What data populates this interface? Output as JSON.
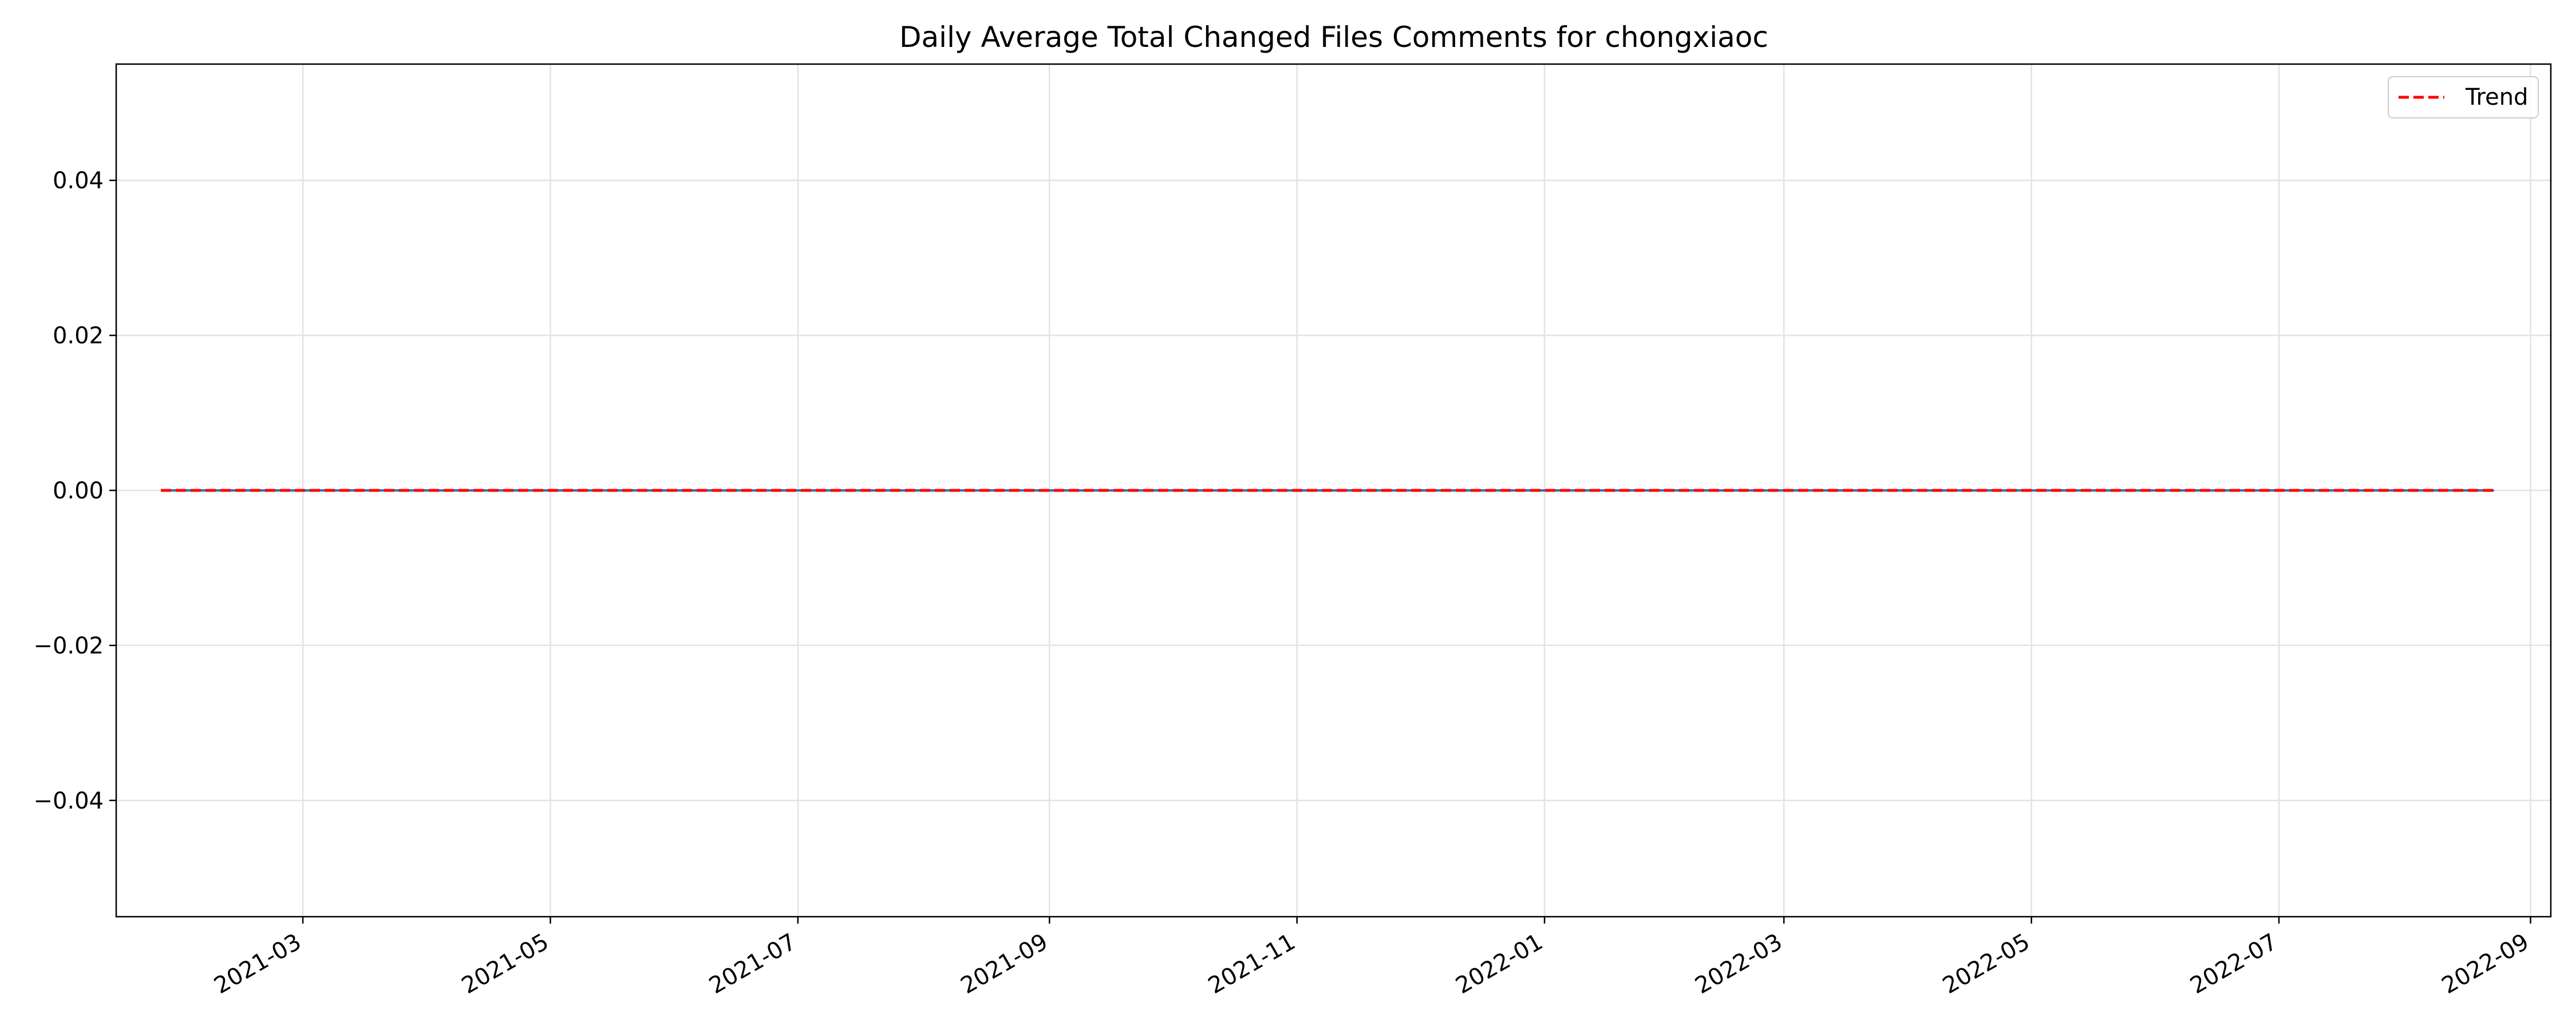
{
  "chart_data": {
    "type": "line",
    "title": "Daily Average Total Changed Files Comments for chongxiaoc",
    "xlabel": "",
    "ylabel": "",
    "x_axis_type": "date",
    "xlim": [
      "2021-01-14",
      "2022-09-06"
    ],
    "ylim": [
      -0.055,
      0.055
    ],
    "x_ticks": [
      "2021-03-01",
      "2021-05-01",
      "2021-07-01",
      "2021-09-01",
      "2021-11-01",
      "2022-01-01",
      "2022-03-01",
      "2022-05-01",
      "2022-07-01",
      "2022-09-01"
    ],
    "x_tick_labels": [
      "2021-03",
      "2021-05",
      "2021-07",
      "2021-09",
      "2021-11",
      "2022-01",
      "2022-03",
      "2022-05",
      "2022-07",
      "2022-09"
    ],
    "y_ticks": [
      -0.04,
      -0.02,
      0.0,
      0.02,
      0.04
    ],
    "y_tick_labels": [
      "−0.04",
      "−0.02",
      "0.00",
      "0.02",
      "0.04"
    ],
    "grid": true,
    "legend_position": "top-right",
    "series": [
      {
        "color": "#1f77b4",
        "style": "solid",
        "points": [
          {
            "x": "2021-01-25",
            "y": 0
          },
          {
            "x": "2022-08-23",
            "y": 0
          }
        ]
      },
      {
        "name": "Trend",
        "color": "#ff0000",
        "style": "dashed",
        "points": [
          {
            "x": "2021-01-25",
            "y": 0
          },
          {
            "x": "2022-08-23",
            "y": 0
          }
        ]
      }
    ]
  }
}
